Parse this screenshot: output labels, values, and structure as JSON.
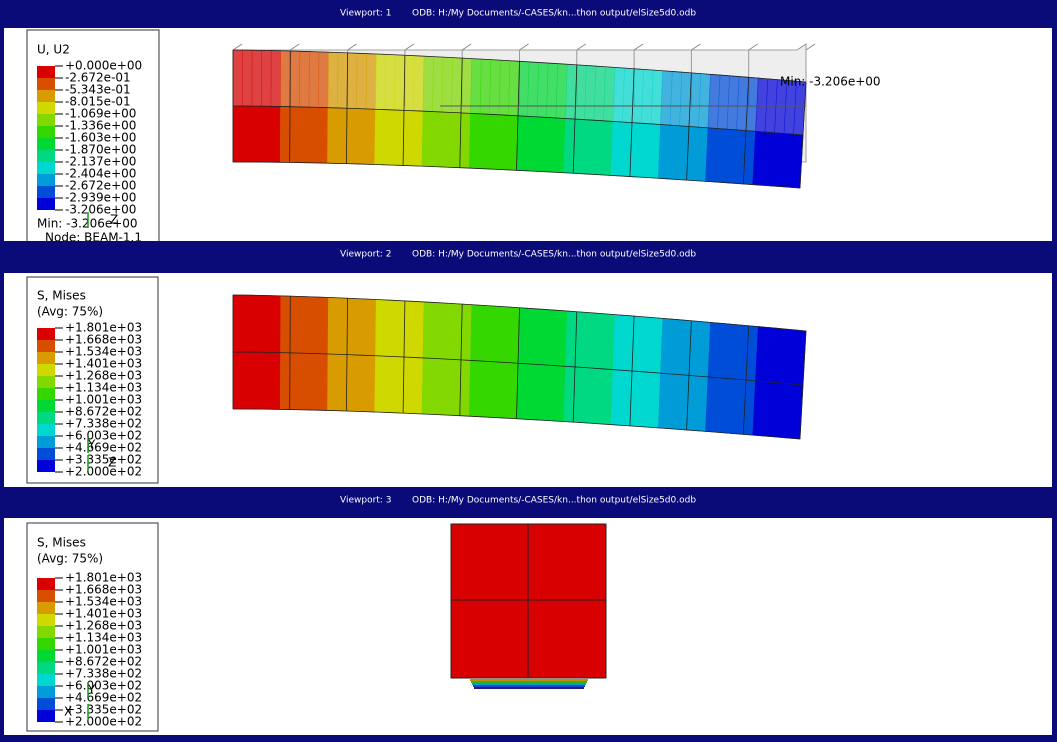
{
  "viewports": [
    {
      "title": "Viewport: 1",
      "odb": "ODB: H:/My Documents/-CASES/kn...thon output/elSize5d0.odb",
      "legend": {
        "title": [
          "U, U2"
        ],
        "labels": [
          "+0.000e+00",
          "-2.672e-01",
          "-5.343e-01",
          "-8.015e-01",
          "-1.069e+00",
          "-1.336e+00",
          "-1.603e+00",
          "-1.870e+00",
          "-2.137e+00",
          "-2.404e+00",
          "-2.672e+00",
          "-2.939e+00",
          "-3.206e+00"
        ],
        "min": "Min: -3.206e+00",
        "node": "Node: BEAM-1.1"
      },
      "annotation": "Min: -3.206e+00",
      "triad": [
        "Z"
      ]
    },
    {
      "title": "Viewport: 2",
      "odb": "ODB: H:/My Documents/-CASES/kn...thon output/elSize5d0.odb",
      "legend": {
        "title": [
          "S, Mises",
          "(Avg: 75%)"
        ],
        "labels": [
          "+1.801e+03",
          "+1.668e+03",
          "+1.534e+03",
          "+1.401e+03",
          "+1.268e+03",
          "+1.134e+03",
          "+1.001e+03",
          "+8.672e+02",
          "+7.338e+02",
          "+6.003e+02",
          "+4.669e+02",
          "+3.335e+02",
          "+2.000e+02"
        ]
      },
      "triad": [
        "Y",
        "Z"
      ]
    },
    {
      "title": "Viewport: 3",
      "odb": "ODB: H:/My Documents/-CASES/kn...thon output/elSize5d0.odb",
      "legend": {
        "title": [
          "S, Mises",
          "(Avg: 75%)"
        ],
        "labels": [
          "+1.801e+03",
          "+1.668e+03",
          "+1.534e+03",
          "+1.401e+03",
          "+1.268e+03",
          "+1.134e+03",
          "+1.001e+03",
          "+8.672e+02",
          "+7.338e+02",
          "+6.003e+02",
          "+4.669e+02",
          "+3.335e+02",
          "+2.000e+02"
        ]
      },
      "triad": [
        "Y",
        "X"
      ]
    }
  ]
}
